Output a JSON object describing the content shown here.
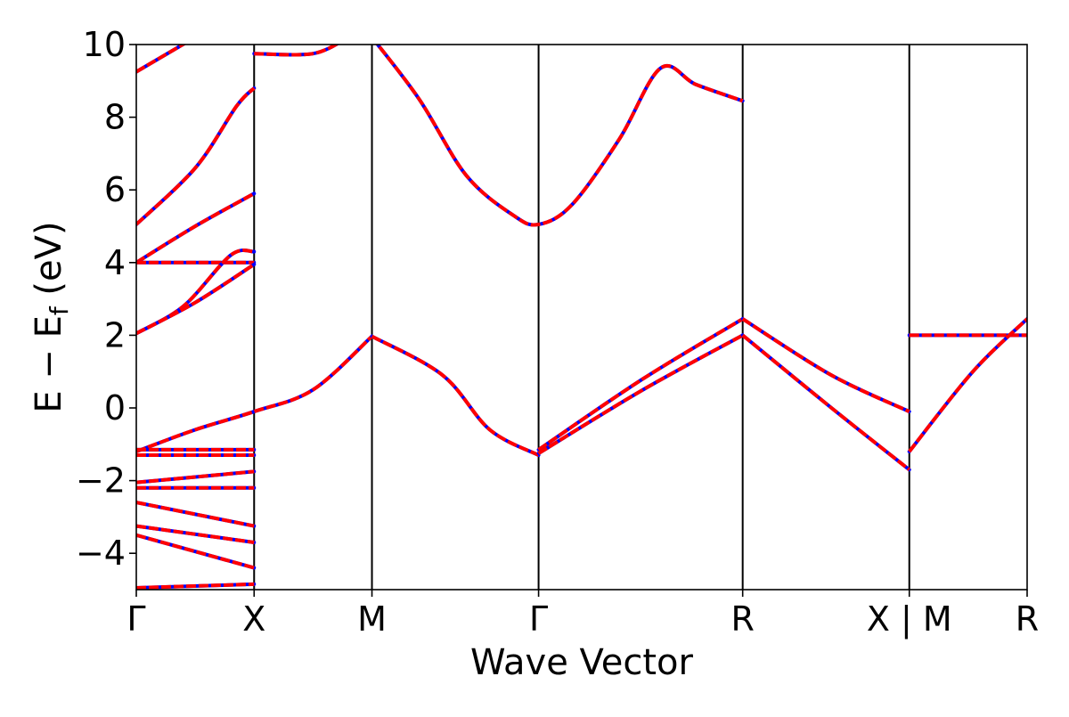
{
  "chart_data": {
    "type": "line",
    "title": "",
    "xlabel": "Wave Vector",
    "ylabel": {
      "main": "E − E",
      "subscript": "f",
      "unit": " (eV)"
    },
    "ylim": [
      -5,
      10
    ],
    "yticks": [
      -4,
      -2,
      0,
      2,
      4,
      6,
      8,
      10
    ],
    "ytick_labels": [
      "−4",
      "−2",
      "0",
      "2",
      "4",
      "6",
      "8",
      "10"
    ],
    "kpath_positions": [
      0,
      1,
      2,
      3.4142,
      5.1463,
      6.5605,
      7.5605
    ],
    "kpath_labels": [
      "Γ",
      "X",
      "M",
      "Γ",
      "R",
      "X | M",
      "R"
    ],
    "line_colors": {
      "primary": "#ff0000",
      "overlay": "#0000ff"
    },
    "bands": [
      {
        "segment": "Γ-X",
        "points": [
          [
            0,
            9.25
          ],
          [
            0.5,
            10.2
          ]
        ]
      },
      {
        "segment": "X-M",
        "points": [
          [
            1,
            9.75
          ],
          [
            1.5,
            9.75
          ],
          [
            1.8,
            10.2
          ]
        ]
      },
      {
        "segment": "M-Γ",
        "points": [
          [
            2,
            10.2
          ],
          [
            2.4,
            8.5
          ],
          [
            2.8,
            6.4
          ],
          [
            3.2,
            5.3
          ],
          [
            3.4142,
            5.05
          ],
          [
            3.7,
            5.6
          ],
          [
            4.1,
            7.4
          ],
          [
            4.45,
            9.35
          ],
          [
            4.75,
            8.9
          ],
          [
            5.1463,
            8.45
          ]
        ]
      },
      {
        "segment": "Γ-X",
        "points": [
          [
            0,
            5.05
          ],
          [
            0.5,
            6.6
          ],
          [
            0.85,
            8.3
          ],
          [
            1,
            8.8
          ]
        ]
      },
      {
        "segment": "Γ-X",
        "points": [
          [
            0,
            4.0
          ],
          [
            0.5,
            5.0
          ],
          [
            1,
            5.9
          ]
        ]
      },
      {
        "segment": "Γ-X",
        "points": [
          [
            0,
            4.0
          ],
          [
            0.5,
            4.0
          ],
          [
            1,
            4.0
          ]
        ]
      },
      {
        "segment": "Γ-X",
        "points": [
          [
            0,
            2.05
          ],
          [
            0.4,
            2.8
          ],
          [
            0.8,
            4.2
          ],
          [
            1,
            4.3
          ]
        ]
      },
      {
        "segment": "Γ-X",
        "points": [
          [
            0,
            2.05
          ],
          [
            0.5,
            2.9
          ],
          [
            1,
            3.95
          ]
        ]
      },
      {
        "segment": "Γ-X-M",
        "points": [
          [
            0,
            -1.2
          ],
          [
            0.5,
            -0.6
          ],
          [
            1,
            -0.1
          ],
          [
            1.5,
            0.5
          ],
          [
            2,
            1.97
          ]
        ]
      },
      {
        "segment": "M-Γ",
        "points": [
          [
            2,
            1.97
          ],
          [
            2.6,
            0.9
          ],
          [
            3.0,
            -0.6
          ],
          [
            3.4142,
            -1.3
          ]
        ]
      },
      {
        "segment": "Γ-R",
        "points": [
          [
            3.4142,
            -1.15
          ],
          [
            4.3,
            0.8
          ],
          [
            5.1463,
            2.45
          ]
        ]
      },
      {
        "segment": "Γ-R",
        "points": [
          [
            3.4142,
            -1.25
          ],
          [
            4.3,
            0.5
          ],
          [
            5.1463,
            2.0
          ]
        ]
      },
      {
        "segment": "R-X",
        "points": [
          [
            5.1463,
            2.45
          ],
          [
            5.9,
            0.9
          ],
          [
            6.5605,
            -0.1
          ]
        ]
      },
      {
        "segment": "R-X",
        "points": [
          [
            5.1463,
            2.0
          ],
          [
            5.9,
            0.0
          ],
          [
            6.5605,
            -1.7
          ]
        ]
      },
      {
        "segment": "M-R",
        "points": [
          [
            6.5605,
            2.0
          ],
          [
            7.5605,
            2.0
          ]
        ]
      },
      {
        "segment": "M-R",
        "points": [
          [
            6.5605,
            -1.2
          ],
          [
            7.1,
            1.0
          ],
          [
            7.5605,
            2.45
          ]
        ]
      },
      {
        "segment": "Γ-X",
        "points": [
          [
            0,
            -1.15
          ],
          [
            1,
            -1.15
          ]
        ]
      },
      {
        "segment": "Γ-X",
        "points": [
          [
            0,
            -1.3
          ],
          [
            1,
            -1.3
          ]
        ]
      },
      {
        "segment": "Γ-X",
        "points": [
          [
            0,
            -2.05
          ],
          [
            1,
            -1.75
          ]
        ]
      },
      {
        "segment": "Γ-X",
        "points": [
          [
            0,
            -2.2
          ],
          [
            1,
            -2.2
          ]
        ]
      },
      {
        "segment": "Γ-X",
        "points": [
          [
            0,
            -2.6
          ],
          [
            1,
            -3.25
          ]
        ]
      },
      {
        "segment": "Γ-X",
        "points": [
          [
            0,
            -3.25
          ],
          [
            1,
            -3.7
          ]
        ]
      },
      {
        "segment": "Γ-X",
        "points": [
          [
            0,
            -3.5
          ],
          [
            1,
            -4.4
          ]
        ]
      },
      {
        "segment": "Γ-X",
        "points": [
          [
            0,
            -4.95
          ],
          [
            1,
            -4.85
          ]
        ]
      }
    ]
  }
}
